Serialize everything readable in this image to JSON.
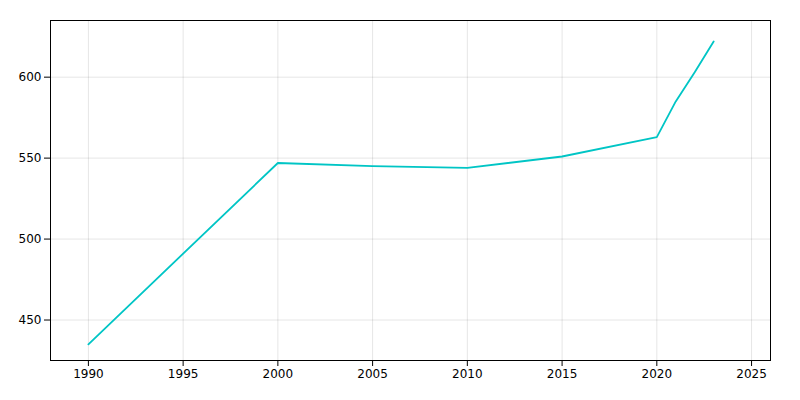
{
  "chart_data": {
    "type": "line",
    "x": [
      1990,
      2000,
      2005,
      2010,
      2015,
      2020,
      2021,
      2022,
      2023
    ],
    "values": [
      435,
      547,
      545,
      544,
      551,
      563,
      585,
      603,
      622
    ],
    "color": "#00C5C5",
    "xlim": [
      1988,
      2026
    ],
    "xticks": [
      1990,
      1995,
      2000,
      2005,
      2010,
      2015,
      2020,
      2025
    ],
    "ylim": [
      425,
      635
    ],
    "yticks": [
      450,
      500,
      550,
      600
    ],
    "grid": true
  }
}
